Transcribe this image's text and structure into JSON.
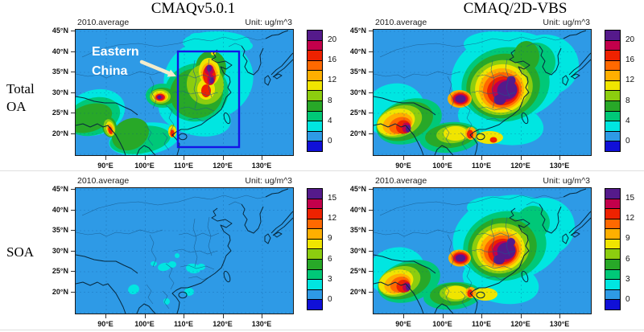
{
  "columns": [
    {
      "title": "CMAQv5.0.1"
    },
    {
      "title": "CMAQ/2D-VBS"
    }
  ],
  "rows": [
    {
      "lines": [
        "Total",
        "OA"
      ]
    },
    {
      "lines": [
        "SOA"
      ]
    }
  ],
  "axes": {
    "x_ticks": [
      "90°E",
      "100°E",
      "110°E",
      "120°E",
      "130°E"
    ],
    "y_ticks": [
      "45°N",
      "40°N",
      "35°N",
      "30°N",
      "25°N",
      "20°N"
    ]
  },
  "palette": [
    "#1010D7",
    "#2E9AE6",
    "#00E6E1",
    "#00C878",
    "#28A828",
    "#8CCD0F",
    "#F0E500",
    "#FFAF00",
    "#FF6900",
    "#EE2200",
    "#C3004B",
    "#551A8B"
  ],
  "annotation": {
    "lines": [
      "Eastern",
      "China"
    ],
    "box_color": "#1414E6",
    "arrow_color": "#F2ECCB",
    "text_color": "#FFFFFF"
  },
  "panels": [
    {
      "id": "tl",
      "row": 0,
      "col": 0,
      "header_left": "2010.average",
      "header_right": "Unit: ug/m^3",
      "cb_labels": [
        "20",
        "16",
        "12",
        "8",
        "4",
        "0"
      ],
      "overlay": true
    },
    {
      "id": "tr",
      "row": 0,
      "col": 1,
      "header_left": "2010.average",
      "header_right": "Unit: ug/m^3",
      "cb_labels": [
        "20",
        "16",
        "12",
        "8",
        "4",
        "0"
      ],
      "overlay": false
    },
    {
      "id": "bl",
      "row": 1,
      "col": 0,
      "header_left": "2010.average",
      "header_right": "Unit: ug/m^3",
      "cb_labels": [
        "15",
        "12",
        "9",
        "6",
        "3",
        "0"
      ],
      "overlay": false
    },
    {
      "id": "br",
      "row": 1,
      "col": 1,
      "header_left": "2010.average",
      "header_right": "Unit: ug/m^3",
      "cb_labels": [
        "15",
        "12",
        "9",
        "6",
        "3",
        "0"
      ],
      "overlay": false
    }
  ],
  "chart_data": [
    {
      "type": "heatmap",
      "title": "CMAQv5.0.1 - Total OA, 2010 average",
      "model": "CMAQv5.0.1",
      "species": "Total OA",
      "period": "2010.average",
      "unit": "ug/m^3",
      "x_ticks": [
        "90°E",
        "100°E",
        "110°E",
        "120°E",
        "130°E"
      ],
      "y_ticks": [
        "45°N",
        "40°N",
        "35°N",
        "30°N",
        "25°N",
        "20°N"
      ],
      "levels": [
        0,
        2,
        4,
        6,
        8,
        10,
        12,
        14,
        16,
        18,
        20
      ],
      "colorbar_labels": [
        0,
        4,
        8,
        12,
        16,
        20
      ],
      "legend_position": "right",
      "annotation": "Eastern China box ~108-124°E, ~20-40°N",
      "hotspots": [
        {
          "region": "North China Plain ~113-118°E, 33-38°N",
          "value": ">20"
        },
        {
          "region": "Central/East China ~112-118°E, 28-33°N",
          "value": "16-20"
        },
        {
          "region": "Sichuan Basin ~104-107°E, 28-31°N",
          "value": ">20"
        },
        {
          "region": "Myanmar/Bangladesh ~92-96°E, 20-24°N",
          "value": "12-18"
        },
        {
          "region": "Red River delta ~106°E, 21°N",
          "value": "12-18"
        }
      ],
      "background": "0-2 over oceans, western China, Mongolia; 4-8 green over India band and SE Asia"
    },
    {
      "type": "heatmap",
      "title": "CMAQ/2D-VBS - Total OA, 2010 average",
      "model": "CMAQ/2D-VBS",
      "species": "Total OA",
      "period": "2010.average",
      "unit": "ug/m^3",
      "x_ticks": [
        "90°E",
        "100°E",
        "110°E",
        "120°E",
        "130°E"
      ],
      "y_ticks": [
        "45°N",
        "40°N",
        "35°N",
        "30°N",
        "25°N",
        "20°N"
      ],
      "levels": [
        0,
        2,
        4,
        6,
        8,
        10,
        12,
        14,
        16,
        18,
        20
      ],
      "colorbar_labels": [
        0,
        4,
        8,
        12,
        16,
        20
      ],
      "legend_position": "right",
      "hotspots": [
        {
          "region": "Large central-east China blob ~110-120°E, 25-33°N",
          "value": ">20 (purple core)"
        },
        {
          "region": "Sichuan Basin ~105°E, 27-30°N",
          "value": ">20"
        },
        {
          "region": "Myanmar ~95°E, 21-23°N",
          "value": "18->20"
        },
        {
          "region": "India/Myanmar band along 20-28°N",
          "value": "8-16"
        }
      ],
      "background": "2-8 halo extends to Korea and Yellow Sea; oceans 0-2"
    },
    {
      "type": "heatmap",
      "title": "CMAQv5.0.1 - SOA, 2010 average",
      "model": "CMAQv5.0.1",
      "species": "SOA",
      "period": "2010.average",
      "unit": "ug/m^3",
      "x_ticks": [
        "90°E",
        "100°E",
        "110°E",
        "120°E",
        "130°E"
      ],
      "y_ticks": [
        "45°N",
        "40°N",
        "35°N",
        "30°N",
        "25°N",
        "20°N"
      ],
      "levels": [
        0,
        1.5,
        3,
        4.5,
        6,
        7.5,
        9,
        10.5,
        12,
        13.5,
        15
      ],
      "colorbar_labels": [
        0,
        3,
        6,
        9,
        12,
        15
      ],
      "legend_position": "right",
      "hotspots": [
        {
          "region": "Small scattered patches central/south China ~95-115°E, 20-29°N",
          "value": "1.5-3 (cyan)"
        }
      ],
      "background": "nearly uniform 0-1.5 everywhere"
    },
    {
      "type": "heatmap",
      "title": "CMAQ/2D-VBS - SOA, 2010 average",
      "model": "CMAQ/2D-VBS",
      "species": "SOA",
      "period": "2010.average",
      "unit": "ug/m^3",
      "x_ticks": [
        "90°E",
        "100°E",
        "110°E",
        "120°E",
        "130°E"
      ],
      "y_ticks": [
        "45°N",
        "40°N",
        "35°N",
        "30°N",
        "25°N",
        "20°N"
      ],
      "levels": [
        0,
        1.5,
        3,
        4.5,
        6,
        7.5,
        9,
        10.5,
        12,
        13.5,
        15
      ],
      "colorbar_labels": [
        0,
        3,
        6,
        9,
        12,
        15
      ],
      "legend_position": "right",
      "hotspots": [
        {
          "region": "Central-east China ~110-120°E, 24-32°N",
          "value": ">15 (purple core)"
        },
        {
          "region": "Sichuan Basin ~105°E, 27°N",
          "value": ">15"
        },
        {
          "region": "Myanmar ~95°E, 21-23°N",
          "value": "12->15"
        },
        {
          "region": "South China ~105-115°E, 20-24°N",
          "value": "6-12"
        }
      ],
      "background": "3-6 halo to Korea/Japan coast; oceans 0-1.5"
    }
  ]
}
